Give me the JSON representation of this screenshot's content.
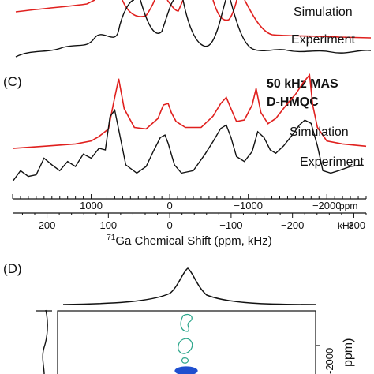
{
  "panels": {
    "top": {
      "traces": [
        {
          "label": "Simulation",
          "color": "#e0201e"
        },
        {
          "label": "Experiment",
          "color": "#111111"
        }
      ]
    },
    "c": {
      "letter": "(C)",
      "annotation_line1": "50 kHz MAS",
      "annotation_line2": "D-HMQC",
      "traces": [
        {
          "label": "Simulation",
          "color": "#e0201e"
        },
        {
          "label": "Experiment",
          "color": "#111111"
        }
      ]
    },
    "d": {
      "letter": "(D)",
      "right_axis_tick": "-2000",
      "right_axis_label": "ppm)",
      "contour_colors": {
        "upper": "#2aa58a",
        "lower": "#1f4fcf"
      }
    }
  },
  "axes": {
    "ppm_unit": "ppm",
    "khz_unit": "kHz",
    "xlabel_superscript": "71",
    "xlabel_text": "Ga Chemical Shift (ppm, kHz)"
  },
  "chart_data": {
    "type": "line",
    "x_ppm_range": [
      2000,
      -2500
    ],
    "x_ppm_ticks": [
      {
        "value": 1000,
        "label": "1000"
      },
      {
        "value": 0,
        "label": "0"
      },
      {
        "value": -1000,
        "label": "−1000"
      },
      {
        "value": -2000,
        "label": "−2000"
      }
    ],
    "x_khz_ticks": [
      {
        "value": 200,
        "label": "200"
      },
      {
        "value": 100,
        "label": "100"
      },
      {
        "value": 0,
        "label": "0"
      },
      {
        "value": -100,
        "label": "−100"
      },
      {
        "value": -200,
        "label": "−200"
      },
      {
        "value": -300,
        "label": "−300"
      }
    ],
    "series": [
      {
        "name": "Simulation",
        "panel": "C",
        "x": [
          2000,
          1600,
          1200,
          1000,
          900,
          780,
          720,
          650,
          580,
          450,
          300,
          150,
          80,
          20,
          -20,
          -80,
          -200,
          -400,
          -550,
          -650,
          -720,
          -780,
          -850,
          -950,
          -1050,
          -1100,
          -1160,
          -1250,
          -1350,
          -1500,
          -1600,
          -1700,
          -1780,
          -1820,
          -1880,
          -2000,
          -2200,
          -2500
        ],
        "y": [
          0.02,
          0.05,
          0.08,
          0.12,
          0.18,
          0.28,
          0.6,
          0.95,
          0.55,
          0.3,
          0.28,
          0.42,
          0.6,
          0.62,
          0.5,
          0.38,
          0.3,
          0.3,
          0.45,
          0.62,
          0.7,
          0.55,
          0.38,
          0.4,
          0.6,
          0.82,
          0.5,
          0.35,
          0.42,
          0.62,
          0.74,
          0.9,
          1.0,
          0.6,
          0.3,
          0.12,
          0.08,
          0.05
        ]
      },
      {
        "name": "Experiment",
        "panel": "C",
        "x": [
          2000,
          1900,
          1800,
          1700,
          1600,
          1500,
          1400,
          1300,
          1200,
          1100,
          1000,
          900,
          820,
          760,
          700,
          640,
          560,
          420,
          300,
          200,
          120,
          60,
          20,
          -20,
          -60,
          -150,
          -300,
          -450,
          -550,
          -650,
          -720,
          -780,
          -850,
          -950,
          -1050,
          -1120,
          -1200,
          -1280,
          -1350,
          -1450,
          -1560,
          -1650,
          -1720,
          -1800,
          -1880,
          -1950,
          -2050,
          -2150,
          -2300,
          -2450
        ],
        "y": [
          0.02,
          0.15,
          0.08,
          0.1,
          0.3,
          0.22,
          0.15,
          0.26,
          0.2,
          0.35,
          0.3,
          0.42,
          0.4,
          0.8,
          0.88,
          0.6,
          0.22,
          0.12,
          0.2,
          0.4,
          0.55,
          0.58,
          0.48,
          0.35,
          0.22,
          0.12,
          0.15,
          0.35,
          0.5,
          0.66,
          0.7,
          0.55,
          0.32,
          0.26,
          0.38,
          0.62,
          0.55,
          0.4,
          0.36,
          0.45,
          0.58,
          0.7,
          0.76,
          0.72,
          0.45,
          0.15,
          0.12,
          0.15,
          0.2,
          0.22
        ]
      }
    ]
  }
}
